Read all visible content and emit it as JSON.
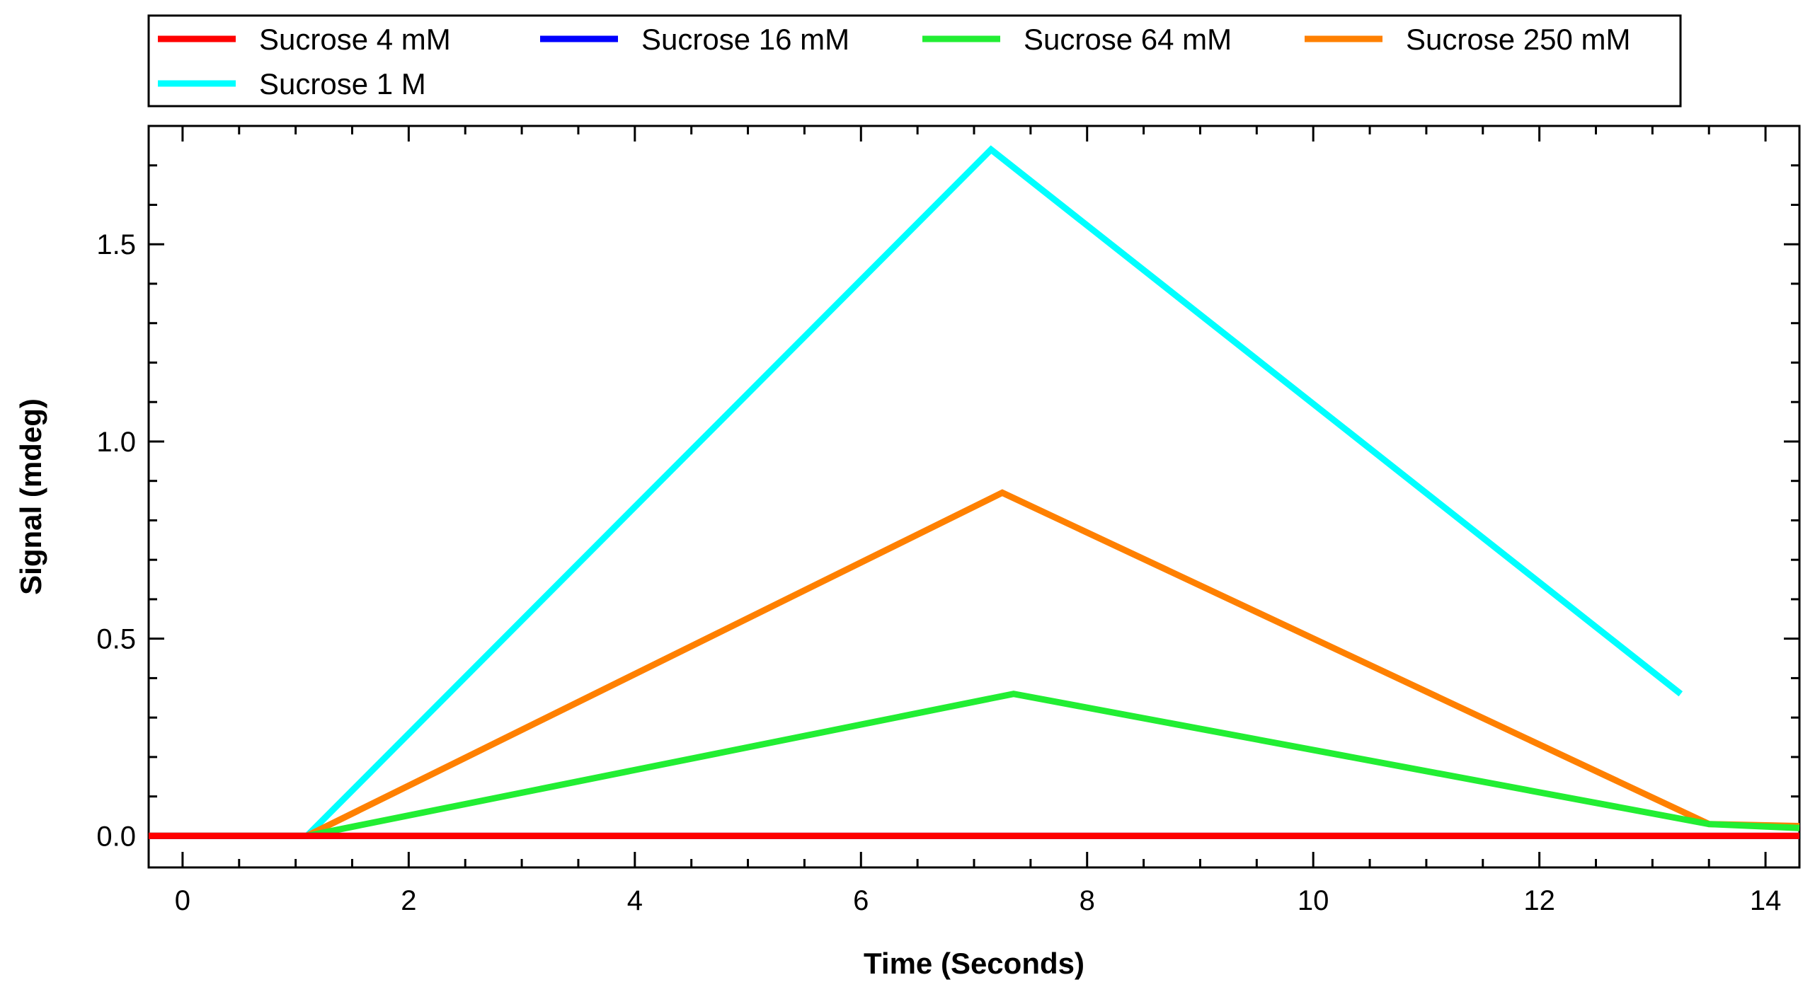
{
  "chart_data": {
    "type": "line",
    "title": "",
    "xlabel": "Time (Seconds)",
    "ylabel": "Signal (mdeg)",
    "xlim": [
      -0.3,
      14.3
    ],
    "ylim": [
      -0.08,
      1.8
    ],
    "x_ticks": [
      0,
      2,
      4,
      6,
      8,
      10,
      12,
      14
    ],
    "x_tick_labels": [
      "0",
      "2",
      "4",
      "6",
      "8",
      "10",
      "12",
      "14"
    ],
    "x_minor_step": 0.5,
    "y_ticks": [
      0.0,
      0.5,
      1.0,
      1.5
    ],
    "y_tick_labels": [
      "0.0",
      "0.5",
      "1.0",
      "1.5"
    ],
    "y_minor_step": 0.1,
    "grid": false,
    "legend_position": "top",
    "series": [
      {
        "name": "Sucrose 4 mM",
        "color": "#ff0000",
        "x": [
          -0.3,
          1.1,
          7.2,
          13.5,
          14.3
        ],
        "y": [
          0.0,
          0.0,
          0.0,
          0.0,
          0.0
        ]
      },
      {
        "name": "Sucrose 16 mM",
        "color": "#0000ff",
        "x": [
          -0.3,
          1.1,
          7.2,
          13.5,
          14.3
        ],
        "y": [
          0.0,
          0.0,
          0.0,
          0.0,
          0.0
        ]
      },
      {
        "name": "Sucrose 64 mM",
        "color": "#22ee33",
        "x": [
          -0.3,
          1.1,
          7.35,
          13.5,
          14.3
        ],
        "y": [
          0.0,
          0.0,
          0.36,
          0.03,
          0.02
        ]
      },
      {
        "name": "Sucrose 250 mM",
        "color": "#ff8000",
        "x": [
          -0.3,
          1.1,
          7.25,
          13.5,
          14.3
        ],
        "y": [
          0.0,
          0.0,
          0.87,
          0.03,
          0.025
        ]
      },
      {
        "name": "Sucrose 1 M",
        "color": "#00ffff",
        "x": [
          1.1,
          7.15,
          13.25
        ],
        "y": [
          0.0,
          1.74,
          0.36
        ]
      }
    ]
  }
}
